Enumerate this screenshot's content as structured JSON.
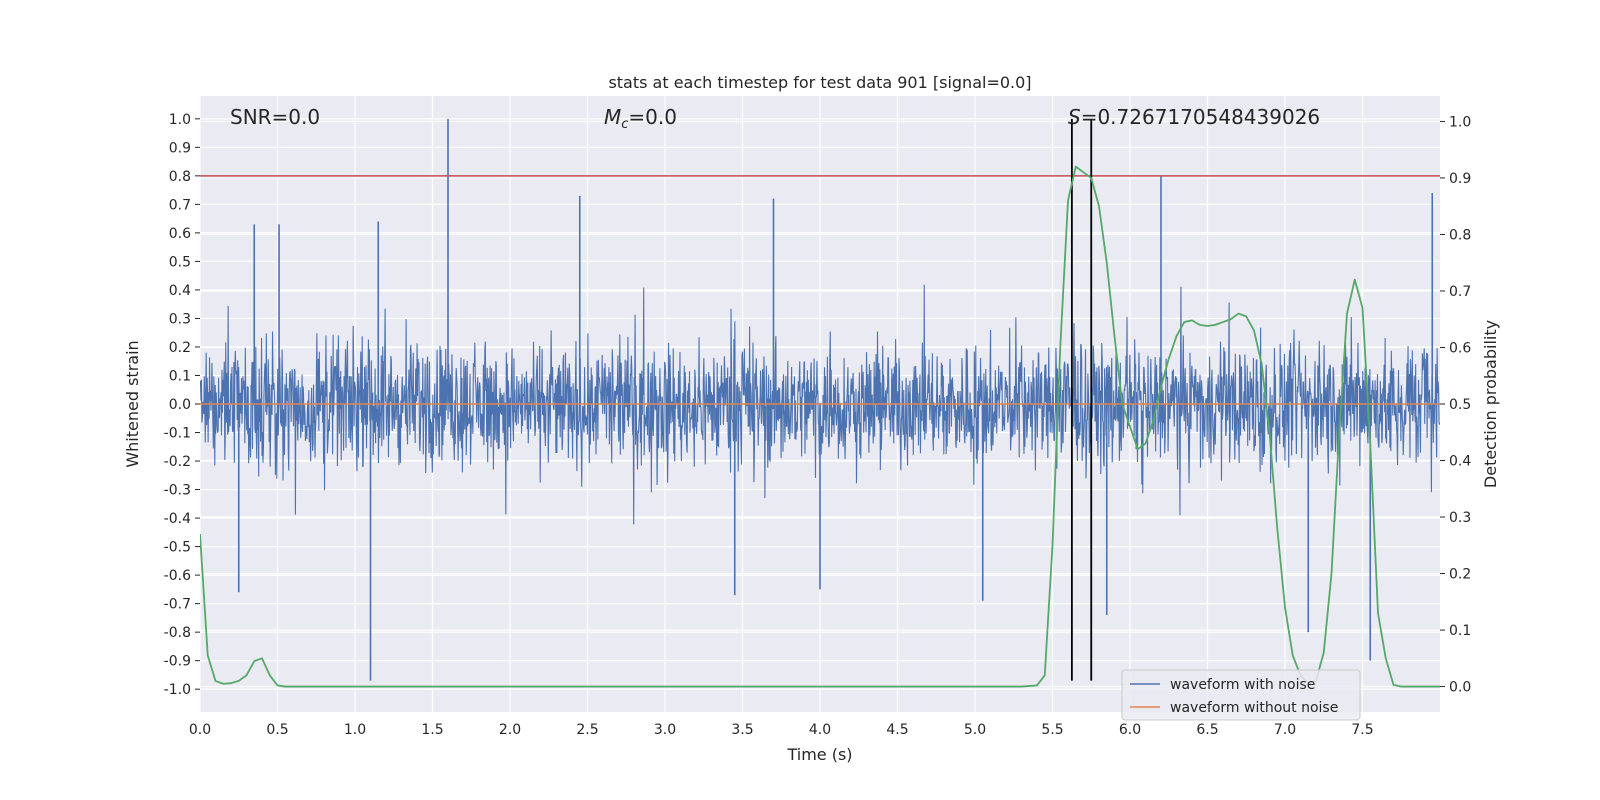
{
  "chart_data": {
    "type": "line",
    "title": "stats at each timestep for test data 901 [signal=0.0]",
    "xlabel": "Time (s)",
    "ylabel_left": "Whitened strain",
    "ylabel_right": "Detection probability",
    "xlim": [
      0.0,
      8.0
    ],
    "ylim_left": [
      -1.08,
      1.08
    ],
    "ylim_right": [
      -0.045,
      1.045
    ],
    "x_ticks": [
      "0.0",
      "0.5",
      "1.0",
      "1.5",
      "2.0",
      "2.5",
      "3.0",
      "3.5",
      "4.0",
      "4.5",
      "5.0",
      "5.5",
      "6.0",
      "6.5",
      "7.0",
      "7.5"
    ],
    "y_ticks_left": [
      "1.0",
      "0.9",
      "0.8",
      "0.7",
      "0.6",
      "0.5",
      "0.4",
      "0.3",
      "0.2",
      "0.1",
      "0.0",
      "-0.1",
      "-0.2",
      "-0.3",
      "-0.4",
      "-0.5",
      "-0.6",
      "-0.7",
      "-0.8",
      "-0.9",
      "-1.0"
    ],
    "y_ticks_right": [
      "1.0",
      "0.9",
      "0.8",
      "0.7",
      "0.6",
      "0.5",
      "0.4",
      "0.3",
      "0.2",
      "0.1",
      "0.0"
    ],
    "grid": true,
    "legend_placement": "lower-right",
    "annotations": {
      "snr": "SNR=0.0",
      "mc_symbol": "M",
      "mc_sub": "c",
      "mc_value": "=0.0",
      "s_symbol": "S",
      "s_value": "=0.7267170548439026"
    },
    "threshold_left": 0.8,
    "event_lines_x": [
      5.625,
      5.75
    ],
    "event_lines_range": [
      -0.97,
      1.0
    ],
    "series": [
      {
        "name": "waveform with noise",
        "color": "#4c72b0",
        "axis": "left",
        "envelope_typical": 0.3,
        "peaks": [
          {
            "x": 0.35,
            "y": 0.63
          },
          {
            "x": 0.51,
            "y": 0.63
          },
          {
            "x": 1.15,
            "y": 0.64
          },
          {
            "x": 1.6,
            "y": 1.0
          },
          {
            "x": 2.45,
            "y": 0.73
          },
          {
            "x": 3.7,
            "y": 0.72
          },
          {
            "x": 6.2,
            "y": 0.8
          },
          {
            "x": 7.95,
            "y": 0.74
          },
          {
            "x": 1.1,
            "y": -0.97
          },
          {
            "x": 0.25,
            "y": -0.66
          },
          {
            "x": 3.45,
            "y": -0.67
          },
          {
            "x": 4.0,
            "y": -0.65
          },
          {
            "x": 5.05,
            "y": -0.69
          },
          {
            "x": 5.85,
            "y": -0.74
          },
          {
            "x": 7.55,
            "y": -0.9
          },
          {
            "x": 7.15,
            "y": -0.8
          }
        ]
      },
      {
        "name": "waveform without noise",
        "color": "#dd8452",
        "axis": "left",
        "x": [
          0.0,
          8.0
        ],
        "y": [
          0.0,
          0.0
        ]
      },
      {
        "name": "",
        "color": "#55a868",
        "axis": "right",
        "x": [
          0.0,
          0.05,
          0.1,
          0.15,
          0.2,
          0.25,
          0.3,
          0.35,
          0.4,
          0.45,
          0.5,
          0.55,
          0.6,
          0.65,
          0.7,
          0.8,
          1.0,
          2.0,
          3.0,
          4.0,
          5.0,
          5.3,
          5.4,
          5.45,
          5.5,
          5.55,
          5.6,
          5.65,
          5.7,
          5.75,
          5.8,
          5.85,
          5.9,
          5.95,
          6.0,
          6.05,
          6.1,
          6.15,
          6.2,
          6.25,
          6.3,
          6.35,
          6.4,
          6.45,
          6.5,
          6.55,
          6.6,
          6.65,
          6.7,
          6.75,
          6.8,
          6.85,
          6.9,
          6.95,
          7.0,
          7.05,
          7.1,
          7.15,
          7.2,
          7.25,
          7.3,
          7.35,
          7.4,
          7.45,
          7.5,
          7.55,
          7.6,
          7.65,
          7.7,
          7.75,
          7.8,
          7.9,
          8.0
        ],
        "y": [
          0.27,
          0.055,
          0.01,
          0.005,
          0.006,
          0.01,
          0.02,
          0.045,
          0.05,
          0.02,
          0.002,
          0.0,
          0.0,
          0.0,
          0.0,
          0.0,
          0.0,
          0.0,
          0.0,
          0.0,
          0.0,
          0.0,
          0.002,
          0.02,
          0.25,
          0.6,
          0.86,
          0.92,
          0.91,
          0.9,
          0.85,
          0.75,
          0.62,
          0.5,
          0.46,
          0.42,
          0.43,
          0.47,
          0.53,
          0.58,
          0.62,
          0.645,
          0.648,
          0.64,
          0.638,
          0.64,
          0.645,
          0.65,
          0.66,
          0.655,
          0.63,
          0.57,
          0.45,
          0.28,
          0.14,
          0.055,
          0.02,
          0.005,
          0.01,
          0.06,
          0.2,
          0.45,
          0.66,
          0.72,
          0.67,
          0.43,
          0.13,
          0.05,
          0.003,
          0.0,
          0.0,
          0.0,
          0.0
        ]
      },
      {
        "name": "",
        "color": "#c44e52",
        "axis": "left",
        "x": [
          0.0,
          8.0
        ],
        "y": [
          0.8,
          0.8
        ]
      }
    ]
  }
}
